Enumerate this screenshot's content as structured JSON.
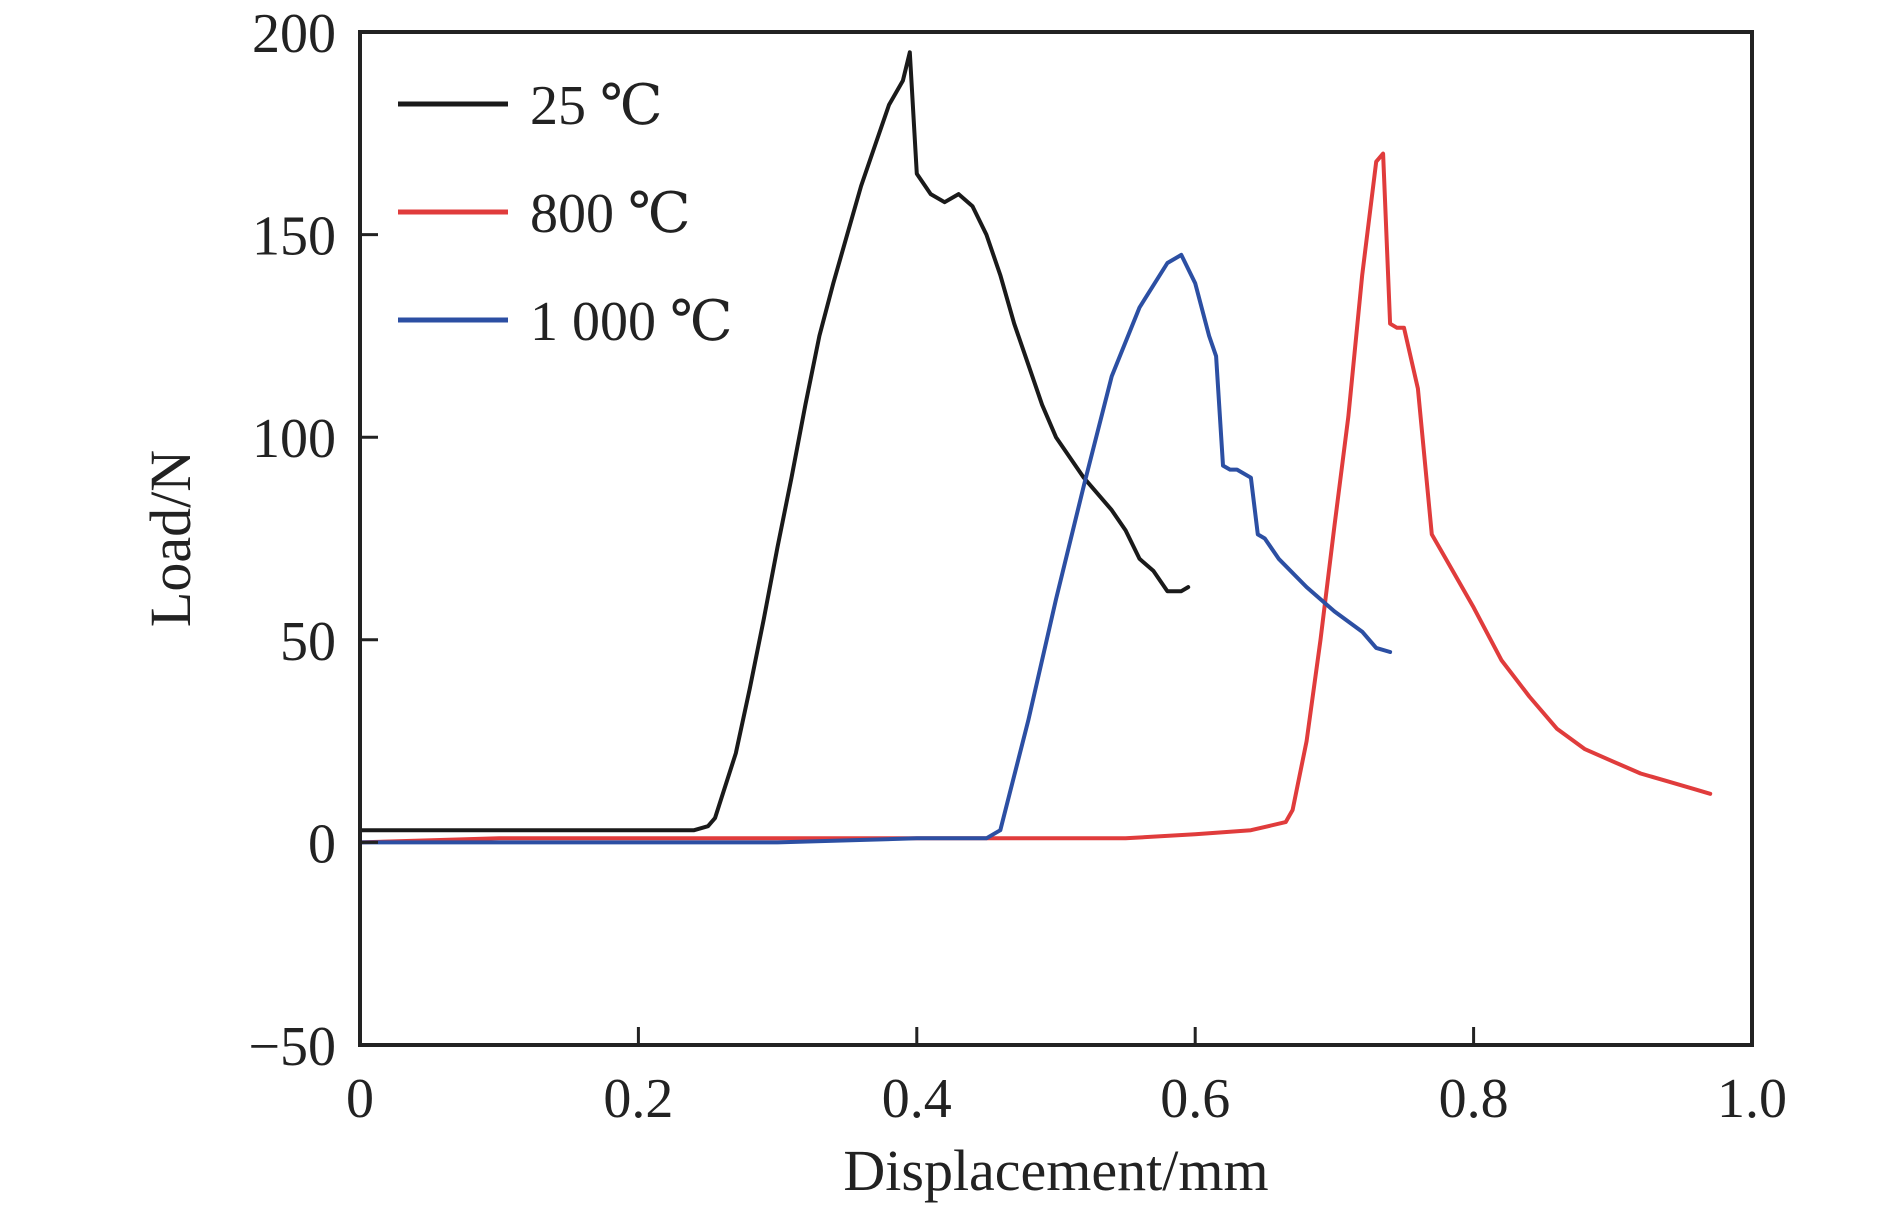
{
  "chart_data": {
    "type": "line",
    "title": "",
    "xlabel": "Displacement/mm",
    "ylabel": "Load/N",
    "xlim": [
      0,
      1.0
    ],
    "ylim": [
      -50,
      200
    ],
    "xticks": [
      "0",
      "0.2",
      "0.4",
      "0.6",
      "0.8",
      "1.0"
    ],
    "xtick_values": [
      0,
      0.2,
      0.4,
      0.6,
      0.8,
      1.0
    ],
    "yticks": [
      "−50",
      "0",
      "50",
      "100",
      "150",
      "200"
    ],
    "ytick_values": [
      -50,
      0,
      50,
      100,
      150,
      200
    ],
    "grid": false,
    "legend_position": "top-left",
    "series": [
      {
        "name": "25 ℃",
        "color": "#1a1a1a",
        "x": [
          0,
          0.05,
          0.1,
          0.15,
          0.2,
          0.24,
          0.25,
          0.255,
          0.27,
          0.28,
          0.29,
          0.3,
          0.31,
          0.32,
          0.33,
          0.34,
          0.35,
          0.36,
          0.37,
          0.38,
          0.39,
          0.395,
          0.4,
          0.41,
          0.42,
          0.43,
          0.44,
          0.45,
          0.46,
          0.47,
          0.48,
          0.49,
          0.5,
          0.51,
          0.52,
          0.53,
          0.54,
          0.55,
          0.56,
          0.57,
          0.58,
          0.59,
          0.595
        ],
        "y": [
          3,
          3,
          3,
          3,
          3,
          3,
          4,
          6,
          22,
          38,
          55,
          73,
          90,
          108,
          125,
          138,
          150,
          162,
          172,
          182,
          188,
          195,
          165,
          160,
          158,
          160,
          157,
          150,
          140,
          128,
          118,
          108,
          100,
          95,
          90,
          86,
          82,
          77,
          70,
          67,
          62,
          62,
          63
        ]
      },
      {
        "name": "800 ℃",
        "color": "#e03c3c",
        "x": [
          0,
          0.1,
          0.2,
          0.3,
          0.4,
          0.5,
          0.55,
          0.6,
          0.64,
          0.665,
          0.67,
          0.68,
          0.69,
          0.7,
          0.71,
          0.72,
          0.73,
          0.735,
          0.74,
          0.745,
          0.75,
          0.76,
          0.77,
          0.78,
          0.8,
          0.82,
          0.84,
          0.86,
          0.88,
          0.9,
          0.92,
          0.94,
          0.96,
          0.97
        ],
        "y": [
          0,
          1,
          1,
          1,
          1,
          1,
          1,
          2,
          3,
          5,
          8,
          25,
          50,
          78,
          105,
          140,
          168,
          170,
          128,
          127,
          127,
          112,
          76,
          70,
          58,
          45,
          36,
          28,
          23,
          20,
          17,
          15,
          13,
          12
        ]
      },
      {
        "name": "1 000 ℃",
        "color": "#2c4fa3",
        "x": [
          0,
          0.1,
          0.2,
          0.3,
          0.4,
          0.45,
          0.46,
          0.48,
          0.5,
          0.52,
          0.54,
          0.56,
          0.58,
          0.59,
          0.6,
          0.61,
          0.615,
          0.62,
          0.625,
          0.63,
          0.64,
          0.645,
          0.65,
          0.66,
          0.68,
          0.7,
          0.72,
          0.73,
          0.74
        ],
        "y": [
          0,
          0,
          0,
          0,
          1,
          1,
          3,
          30,
          60,
          88,
          115,
          132,
          143,
          145,
          138,
          125,
          120,
          93,
          92,
          92,
          90,
          76,
          75,
          70,
          63,
          57,
          52,
          48,
          47
        ]
      }
    ]
  }
}
